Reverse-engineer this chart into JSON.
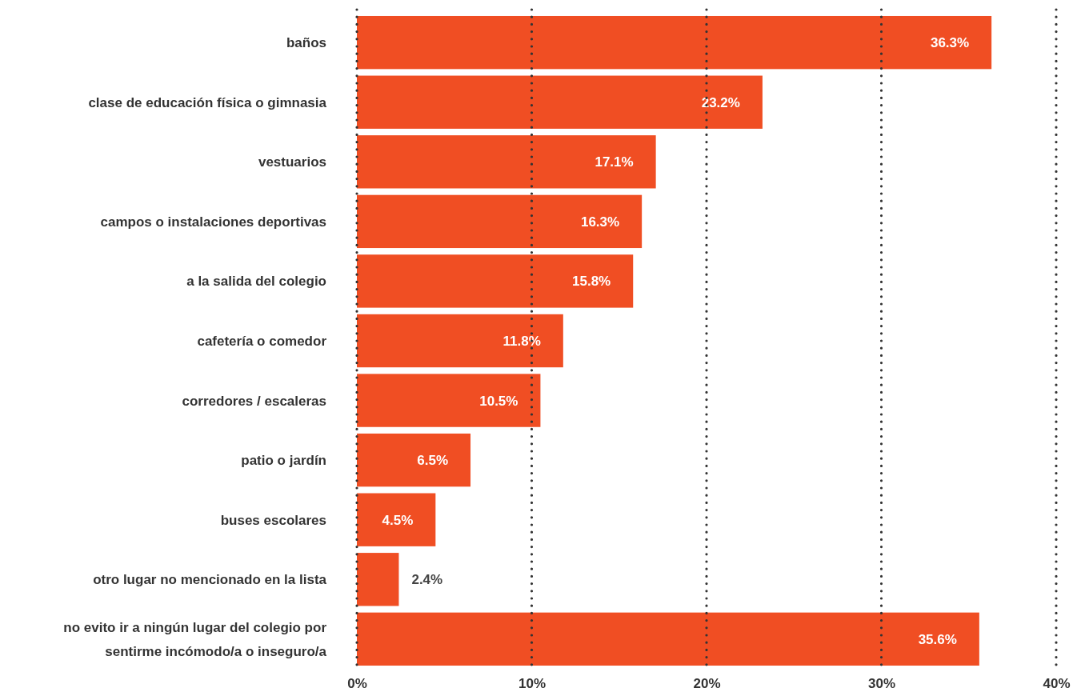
{
  "chart_data": {
    "type": "bar",
    "orientation": "horizontal",
    "categories": [
      "baños",
      "clase de educación física o gimnasia",
      "vestuarios",
      "campos o instalaciones deportivas",
      "a la salida del colegio",
      "cafetería o comedor",
      "corredores / escaleras",
      "patio o jardín",
      "buses escolares",
      "otro lugar no mencionado en la lista",
      "no evito ir a ningún lugar del colegio por sentirme incómodo/a o inseguro/a"
    ],
    "values": [
      36.3,
      23.2,
      17.1,
      16.3,
      15.8,
      11.8,
      10.5,
      6.5,
      4.5,
      2.4,
      35.6
    ],
    "value_labels": [
      "36.3%",
      "23.2%",
      "17.1%",
      "16.3%",
      "15.8%",
      "11.8%",
      "10.5%",
      "6.5%",
      "4.5%",
      "2.4%",
      "35.6%"
    ],
    "color": "#f04e23",
    "xlim": [
      0,
      40
    ],
    "xticks": [
      {
        "value": 0,
        "label": "0%"
      },
      {
        "value": 10,
        "label": "10%"
      },
      {
        "value": 20,
        "label": "20%"
      },
      {
        "value": 30,
        "label": "30%"
      },
      {
        "value": 40,
        "label": "40%"
      }
    ],
    "grid": "x"
  }
}
